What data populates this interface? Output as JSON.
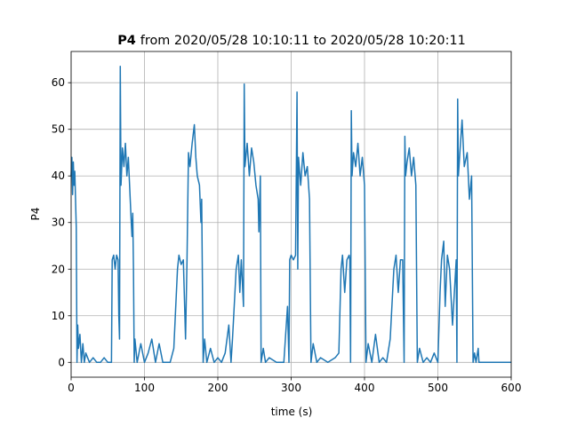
{
  "chart_data": {
    "type": "line",
    "title_prefix": "P4",
    "title": "from 2020/05/28 10:10:11 to 2020/05/28 10:20:11",
    "xlabel": "time (s)",
    "ylabel": "P4",
    "color": "#1f77b4",
    "grid": true,
    "xlim": [
      0,
      600
    ],
    "xticks": [
      0,
      100,
      200,
      300,
      400,
      500,
      600
    ],
    "ylim": [
      -3.18,
      66.7
    ],
    "yticks": [
      0,
      10,
      20,
      30,
      40,
      50,
      60
    ],
    "x": [
      0,
      1,
      2,
      3,
      4,
      5,
      6,
      7,
      8,
      9,
      10,
      12,
      14,
      16,
      18,
      20,
      25,
      30,
      35,
      40,
      45,
      50,
      55,
      56,
      58,
      60,
      62,
      64,
      65,
      66,
      67,
      68,
      70,
      72,
      74,
      76,
      78,
      80,
      82,
      83,
      84,
      85,
      86,
      87,
      90,
      95,
      100,
      105,
      110,
      115,
      120,
      125,
      130,
      135,
      140,
      145,
      147,
      150,
      153,
      156,
      158,
      160,
      162,
      165,
      168,
      170,
      172,
      175,
      177,
      178,
      180,
      182,
      185,
      190,
      195,
      200,
      205,
      210,
      215,
      218,
      220,
      225,
      228,
      230,
      232,
      235,
      236,
      237,
      240,
      243,
      246,
      249,
      252,
      255,
      256,
      258,
      259,
      262,
      265,
      270,
      280,
      290,
      295,
      297,
      298,
      300,
      303,
      306,
      308,
      309,
      310,
      313,
      316,
      319,
      322,
      325,
      327,
      330,
      335,
      340,
      350,
      360,
      365,
      368,
      370,
      373,
      376,
      379,
      380,
      381,
      382,
      383,
      385,
      388,
      391,
      394,
      397,
      400,
      402,
      405,
      410,
      415,
      420,
      425,
      430,
      435,
      440,
      443,
      446,
      449,
      452,
      454,
      455,
      456,
      458,
      461,
      464,
      467,
      470,
      472,
      475,
      480,
      485,
      490,
      495,
      500,
      503,
      505,
      508,
      510,
      513,
      516,
      520,
      525,
      526,
      527,
      528,
      530,
      533,
      536,
      540,
      543,
      546,
      548,
      550,
      552,
      555,
      556,
      560,
      600
    ],
    "values": [
      40,
      44,
      36,
      43,
      38,
      41,
      35,
      29,
      0,
      8,
      3,
      6,
      0,
      4,
      0,
      2,
      0,
      1,
      0,
      0,
      1,
      0,
      0,
      22,
      23,
      20,
      23,
      22,
      10,
      5,
      63.5,
      38,
      46,
      42,
      47,
      40,
      44,
      37,
      30,
      27,
      32,
      20,
      0,
      5,
      0,
      4,
      0,
      2,
      5,
      0,
      4,
      0,
      0,
      0,
      3,
      20,
      23,
      21,
      22,
      5,
      22,
      45,
      42,
      47,
      51,
      44,
      40,
      38,
      30,
      35,
      0,
      5,
      0,
      3,
      0,
      1,
      0,
      2,
      8,
      0,
      5,
      20,
      23,
      15,
      22,
      12,
      59.7,
      42,
      47,
      40,
      46,
      43,
      38,
      35,
      28,
      40,
      0,
      3,
      0,
      1,
      0,
      0,
      12,
      0,
      22,
      23,
      22,
      23,
      58,
      20,
      44,
      38,
      45,
      40,
      42,
      35,
      0,
      4,
      0,
      1,
      0,
      1,
      2,
      20,
      23,
      15,
      22,
      23,
      22,
      0,
      54,
      40,
      45,
      42,
      47,
      40,
      44,
      38,
      0,
      4,
      0,
      6,
      0,
      1,
      0,
      5,
      20,
      23,
      15,
      22,
      22,
      0,
      48.5,
      40,
      43,
      46,
      40,
      44,
      38,
      0,
      3,
      0,
      1,
      0,
      2,
      0,
      15,
      22,
      26,
      12,
      23,
      20,
      8,
      22,
      0,
      56.5,
      40,
      45,
      52,
      42,
      45,
      35,
      40,
      0,
      2,
      0,
      3,
      0,
      0,
      0
    ]
  }
}
